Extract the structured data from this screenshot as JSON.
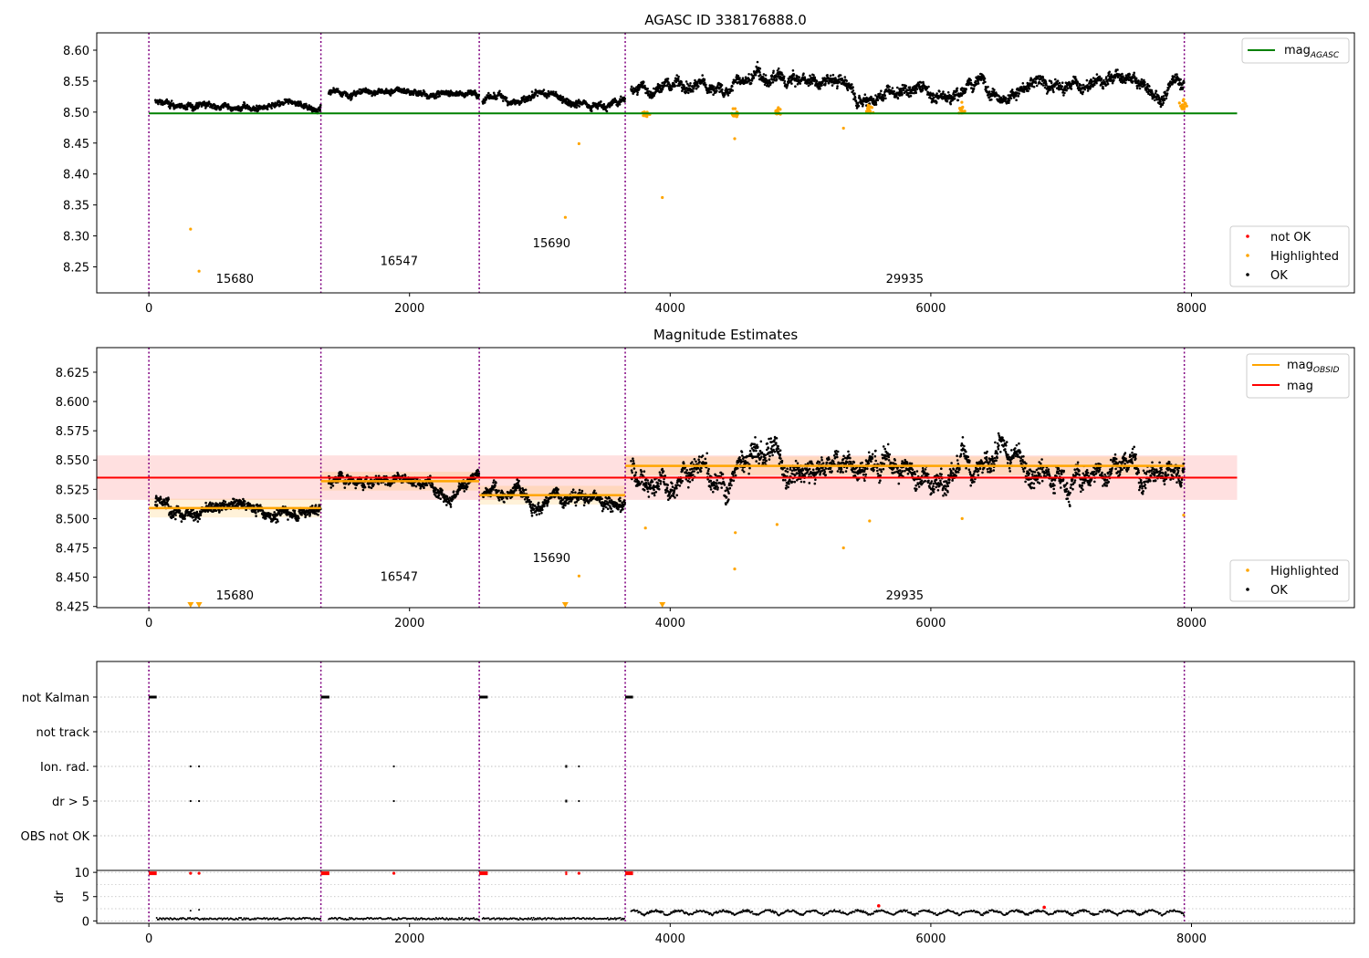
{
  "chart_data": [
    {
      "type": "scatter",
      "title": "AGASC ID 338176888.0",
      "xlim": [
        -400,
        9250
      ],
      "ylim": [
        8.208,
        8.628
      ],
      "xticks": [
        0,
        2000,
        4000,
        6000,
        8000
      ],
      "yticks": [
        8.25,
        8.3,
        8.35,
        8.4,
        8.45,
        8.5,
        8.55,
        8.6
      ],
      "obs_boundaries": [
        0,
        1320,
        2535,
        3655,
        7945
      ],
      "obsids": [
        {
          "label": "15680",
          "x": 660,
          "y": 8.224
        },
        {
          "label": "16547",
          "x": 1920,
          "y": 8.253
        },
        {
          "label": "15690",
          "x": 3090,
          "y": 8.282
        },
        {
          "label": "29935",
          "x": 5800,
          "y": 8.224
        }
      ],
      "reference_line": {
        "name": "mag_AGASC",
        "value": 8.498,
        "x_range": [
          0,
          8350
        ],
        "color": "#008000"
      },
      "segments": [
        {
          "x0": 50,
          "x1": 1320,
          "mean": 8.508,
          "spread": 0.006
        },
        {
          "x0": 1380,
          "x1": 2535,
          "mean": 8.533,
          "spread": 0.006
        },
        {
          "x0": 2560,
          "x1": 3655,
          "mean": 8.52,
          "spread": 0.007
        },
        {
          "x0": 3700,
          "x1": 7945,
          "mean": 8.545,
          "spread": 0.012
        }
      ],
      "highlighted": [
        [
          320,
          8.311
        ],
        [
          385,
          8.243
        ],
        [
          3195,
          8.33
        ],
        [
          3300,
          8.449
        ],
        [
          3940,
          8.362
        ],
        [
          4495,
          8.457
        ],
        [
          5330,
          8.474
        ],
        [
          3810,
          8.492
        ],
        [
          4500,
          8.492
        ],
        [
          4820,
          8.495
        ],
        [
          5530,
          8.498
        ],
        [
          6240,
          8.498
        ],
        [
          7940,
          8.505
        ]
      ],
      "legend": {
        "upper": [
          {
            "label": "mag",
            "subscript": "AGASC",
            "color": "#008000"
          }
        ],
        "lower": [
          {
            "label": "not OK",
            "color": "#ff0000"
          },
          {
            "label": "Highlighted",
            "color": "#ffa500"
          },
          {
            "label": "OK",
            "color": "#000000"
          }
        ]
      }
    },
    {
      "type": "scatter",
      "title": "Magnitude Estimates",
      "xlim": [
        -400,
        9250
      ],
      "ylim": [
        8.424,
        8.646
      ],
      "xticks": [
        0,
        2000,
        4000,
        6000,
        8000
      ],
      "yticks": [
        8.425,
        8.45,
        8.475,
        8.5,
        8.525,
        8.55,
        8.575,
        8.6,
        8.625
      ],
      "obs_boundaries": [
        0,
        1320,
        2535,
        3655,
        7945
      ],
      "obsids": [
        {
          "label": "15680",
          "x": 660,
          "y": 8.431
        },
        {
          "label": "16547",
          "x": 1920,
          "y": 8.447
        },
        {
          "label": "15690",
          "x": 3090,
          "y": 8.463
        },
        {
          "label": "29935",
          "x": 5800,
          "y": 8.431
        }
      ],
      "mag_line": {
        "name": "mag",
        "value": 8.535,
        "band": [
          8.516,
          8.554
        ],
        "x_range": [
          -400,
          8350
        ],
        "color": "#ff0000"
      },
      "mag_obsid": [
        {
          "obsid": "15680",
          "x0": 0,
          "x1": 1320,
          "value": 8.509
        },
        {
          "obsid": "16547",
          "x0": 1320,
          "x1": 2535,
          "value": 8.532
        },
        {
          "obsid": "15690",
          "x0": 2535,
          "x1": 3655,
          "value": 8.52
        },
        {
          "obsid": "29935",
          "x0": 3655,
          "x1": 7945,
          "value": 8.545
        }
      ],
      "segments": [
        {
          "x0": 50,
          "x1": 1320,
          "mean": 8.508,
          "spread": 0.006
        },
        {
          "x0": 1380,
          "x1": 2535,
          "mean": 8.533,
          "spread": 0.006
        },
        {
          "x0": 2560,
          "x1": 3655,
          "mean": 8.52,
          "spread": 0.007
        },
        {
          "x0": 3700,
          "x1": 7945,
          "mean": 8.545,
          "spread": 0.012
        }
      ],
      "highlighted": [
        [
          3300,
          8.451
        ],
        [
          4495,
          8.457
        ],
        [
          5330,
          8.475
        ],
        [
          3810,
          8.492
        ],
        [
          4500,
          8.488
        ],
        [
          4820,
          8.495
        ],
        [
          5530,
          8.498
        ],
        [
          6240,
          8.5
        ],
        [
          7940,
          8.503
        ]
      ],
      "clipped": [
        [
          320,
          8.424
        ],
        [
          385,
          8.424
        ],
        [
          3195,
          8.424
        ],
        [
          3940,
          8.424
        ]
      ],
      "legend": [
        {
          "label": "mag",
          "subscript": "OBSID",
          "color": "#ffa500"
        },
        {
          "label": "mag",
          "subscript": "",
          "color": "#ff0000"
        },
        {
          "label": "Highlighted",
          "color": "#ffa500"
        },
        {
          "label": "OK",
          "color": "#000000"
        }
      ]
    },
    {
      "type": "scatter",
      "title": "",
      "xlim": [
        -400,
        9250
      ],
      "categories": [
        "not Kalman",
        "not track",
        "Ion. rad.",
        "dr > 5",
        "OBS not OK"
      ],
      "obs_boundaries": [
        0,
        1320,
        2535,
        3655,
        7945
      ],
      "flags": {
        "not Kalman": [
          [
            0,
            60
          ],
          [
            1320,
            1385
          ],
          [
            2535,
            2600
          ],
          [
            3655,
            3715
          ]
        ],
        "not track": [],
        "Ion. rad.": [
          [
            320,
            320
          ],
          [
            385,
            385
          ],
          [
            1880,
            1880
          ],
          [
            3195,
            3210
          ],
          [
            3300,
            3300
          ]
        ],
        "dr > 5": [
          [
            320,
            320
          ],
          [
            385,
            385
          ],
          [
            1880,
            1880
          ],
          [
            3195,
            3210
          ],
          [
            3300,
            3300
          ]
        ],
        "OBS not OK": []
      }
    },
    {
      "type": "scatter",
      "title": "",
      "xlim": [
        -400,
        9250
      ],
      "ylim": [
        -0.5,
        10.4
      ],
      "yticks": [
        0,
        5,
        10
      ],
      "xticks": [
        0,
        2000,
        4000,
        6000,
        8000
      ],
      "ylabel": "dr",
      "obs_boundaries": [
        0,
        1320,
        2535,
        3655,
        7945
      ],
      "clipped_red": [
        [
          0,
          60
        ],
        [
          1320,
          1385
        ],
        [
          2535,
          2600
        ],
        [
          3655,
          3715
        ],
        [
          320,
          320
        ],
        [
          385,
          385
        ],
        [
          1880,
          1880
        ],
        [
          3195,
          3210
        ],
        [
          3300,
          3300
        ]
      ],
      "red_points": [
        [
          5600,
          3.1
        ],
        [
          6870,
          2.8
        ]
      ]
    }
  ]
}
